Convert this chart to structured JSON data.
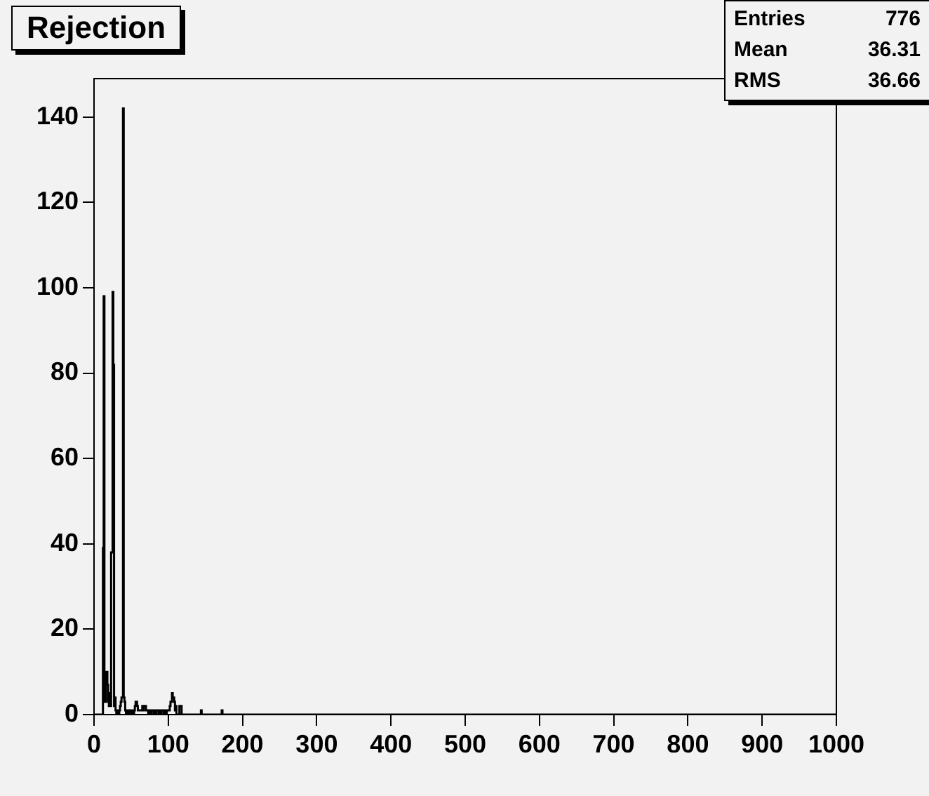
{
  "chart_data": {
    "type": "histogram",
    "title": "Rejection",
    "bins": [
      0,
      1,
      2,
      3,
      4,
      5,
      6,
      7,
      8,
      9,
      10,
      11,
      12,
      13,
      14,
      15,
      16,
      17,
      18,
      19,
      20,
      21,
      22,
      23,
      24,
      25,
      26,
      27,
      28,
      29,
      30,
      31,
      32,
      33,
      34,
      35,
      36,
      37,
      38,
      39,
      40,
      41,
      42,
      43,
      44,
      45,
      46,
      47,
      48,
      49,
      50,
      51,
      52,
      53,
      54,
      55,
      56,
      57,
      58,
      59,
      60,
      61,
      62,
      63,
      64,
      65,
      66,
      67,
      68,
      69,
      70,
      71,
      72,
      73,
      74,
      75,
      76,
      77,
      78,
      79,
      80,
      81,
      82,
      83,
      84,
      85,
      86,
      87,
      88,
      89,
      90,
      91,
      92,
      93,
      94,
      95,
      96,
      97,
      98,
      99,
      100,
      101,
      102,
      103,
      104,
      105,
      106,
      107,
      108,
      109,
      110,
      111,
      112,
      113,
      114,
      115,
      116,
      117,
      118,
      119,
      120,
      121,
      144,
      145,
      172,
      173,
      1000
    ],
    "values": [
      0,
      0,
      0,
      0,
      0,
      0,
      0,
      0,
      0,
      0,
      0,
      0,
      39,
      98,
      3,
      3,
      10,
      10,
      7,
      3,
      2,
      5,
      2,
      38,
      38,
      99,
      82,
      2,
      4,
      1,
      0,
      0,
      1,
      0,
      1,
      2,
      3,
      4,
      4,
      142,
      4,
      3,
      1,
      0,
      1,
      0,
      1,
      0,
      1,
      0,
      1,
      0,
      1,
      0,
      1,
      2,
      3,
      3,
      2,
      1,
      1,
      1,
      1,
      1,
      1,
      2,
      1,
      2,
      2,
      2,
      1,
      1,
      1,
      0,
      1,
      1,
      0,
      1,
      1,
      1,
      0,
      1,
      1,
      0,
      1,
      1,
      1,
      0,
      1,
      1,
      0,
      1,
      1,
      1,
      0,
      1,
      1,
      0,
      1,
      1,
      1,
      1,
      2,
      3,
      3,
      5,
      4,
      4,
      3,
      1,
      2,
      0,
      0,
      0,
      0,
      2,
      2,
      2,
      0,
      0,
      0,
      0,
      1,
      0,
      1,
      0
    ],
    "color": "#000000",
    "xlim": [
      0,
      1000
    ],
    "xticks": [
      0,
      100,
      200,
      300,
      400,
      500,
      600,
      700,
      800,
      900,
      1000
    ],
    "ylim": [
      0,
      149
    ],
    "yticks": [
      0,
      20,
      40,
      60,
      80,
      100,
      120,
      140
    ],
    "annotations": [
      "Entries 776",
      "Mean 36.31",
      "RMS 36.66"
    ],
    "legend": false
  }
}
